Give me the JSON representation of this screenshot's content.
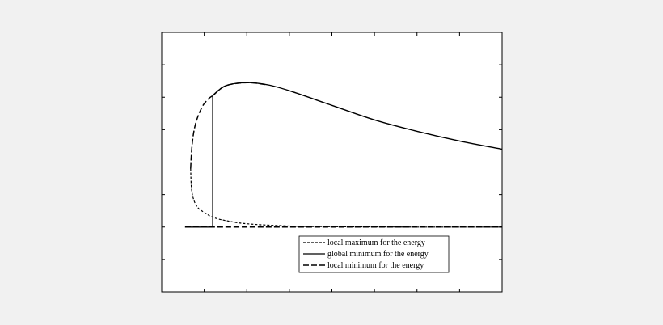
{
  "chart_data": {
    "type": "line",
    "title": "",
    "xlabel": "",
    "ylabel": "",
    "grid": false,
    "xlim": [
      0,
      8
    ],
    "ylim": [
      -2,
      6
    ],
    "x_ticks": [
      1,
      2,
      3,
      4,
      5,
      6,
      7
    ],
    "y_ticks": [
      -1,
      0,
      1,
      2,
      3,
      4,
      5
    ],
    "legend": {
      "placement": "bottom-right",
      "entries": [
        {
          "label": "local maximum for the energy",
          "style": "short-dash"
        },
        {
          "label": "global minimum for the energy",
          "style": "solid"
        },
        {
          "label": "local minimum for the energy",
          "style": "long-dash"
        }
      ]
    },
    "series": [
      {
        "name": "local maximum for the energy",
        "style": "short-dash",
        "x": [
          0.68,
          0.7,
          0.75,
          0.85,
          1.0,
          1.2,
          1.5,
          2.0,
          3.0,
          4.0,
          6.0,
          8.0
        ],
        "y": [
          1.8,
          1.2,
          0.85,
          0.6,
          0.45,
          0.3,
          0.2,
          0.1,
          0.03,
          0.01,
          0.0,
          0.0
        ]
      },
      {
        "name": "global minimum for the energy",
        "style": "solid",
        "x": [
          0.55,
          1.2,
          1.2,
          1.5,
          2.0,
          2.5,
          3.0,
          4.0,
          5.0,
          6.0,
          7.0,
          8.0
        ],
        "y": [
          0.0,
          0.0,
          4.05,
          4.35,
          4.45,
          4.38,
          4.2,
          3.75,
          3.3,
          2.95,
          2.65,
          2.4
        ],
        "note": "step at x = 1.2"
      },
      {
        "name": "local minimum for the energy",
        "style": "long-dash",
        "branches": [
          {
            "x": [
              0.68,
              0.72,
              0.8,
              0.95,
              1.1,
              1.2,
              1.5,
              2.0,
              2.5
            ],
            "y": [
              1.8,
              2.6,
              3.2,
              3.7,
              3.95,
              4.05,
              4.35,
              4.45,
              4.38
            ]
          },
          {
            "x": [
              0.55,
              1.0,
              2.0,
              3.0,
              4.0,
              5.0,
              6.0,
              7.0,
              8.0
            ],
            "y": [
              0.0,
              0.0,
              0.0,
              0.0,
              0.0,
              0.0,
              0.0,
              0.0,
              0.0
            ]
          }
        ]
      }
    ]
  }
}
